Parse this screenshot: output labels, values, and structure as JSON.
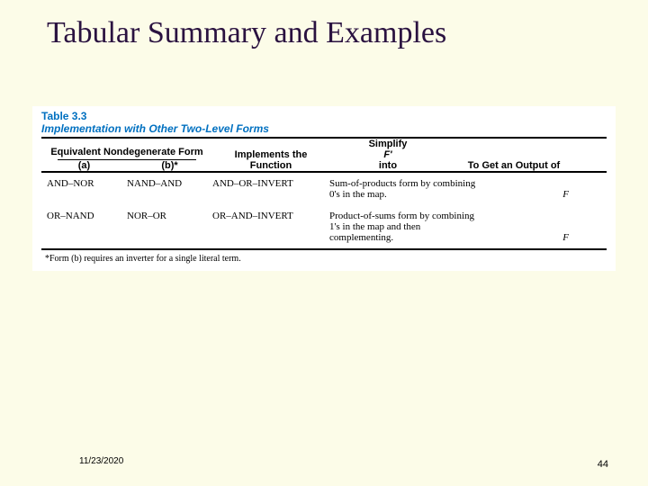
{
  "title": "Tabular Summary and Examples",
  "table": {
    "label": "Table 3.3",
    "caption": "Implementation with Other Two-Level Forms",
    "header": {
      "group1": "Equivalent Nondegenerate Form",
      "group1_a": "(a)",
      "group1_b": "(b)*",
      "implements": "Implements the Function",
      "simplify": "Simplify F' into",
      "output": "To Get an Output of"
    },
    "rows": [
      {
        "a": "AND–NOR",
        "b": "NAND–AND",
        "impl": "AND–OR–INVERT",
        "simp": "Sum-of-products form by combining 0's in the map.",
        "out": "F"
      },
      {
        "a": "OR–NAND",
        "b": "NOR–OR",
        "impl": "OR–AND–INVERT",
        "simp": "Product-of-sums form by combining 1's in the map and then complementing.",
        "out": "F"
      }
    ],
    "footnote": "*Form (b) requires an inverter for a single literal term."
  },
  "footer": {
    "date": "11/23/2020",
    "page": "44"
  }
}
